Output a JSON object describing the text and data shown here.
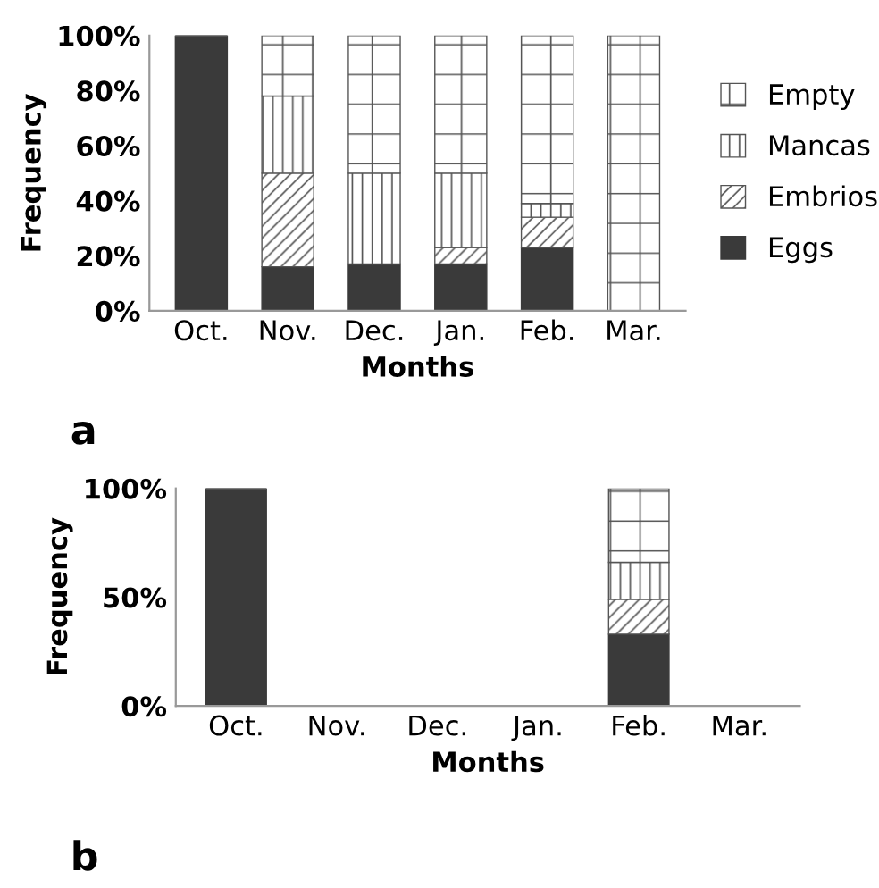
{
  "chart_data": [
    {
      "type": "bar",
      "stacked": true,
      "xlabel": "Months",
      "ylabel": "Frequency",
      "annotations": [
        "a"
      ],
      "categories": [
        "Oct.",
        "Nov.",
        "Dec.",
        "Jan.",
        "Feb.",
        "Mar."
      ],
      "series": [
        {
          "name": "Eggs",
          "color": "#3a3a3a",
          "values": [
            100,
            16,
            17,
            17,
            23,
            0
          ]
        },
        {
          "name": "Embrios",
          "color": "#555555",
          "values": [
            0,
            34,
            0,
            6,
            11,
            0
          ]
        },
        {
          "name": "Mancas",
          "color": "#555555",
          "values": [
            0,
            28,
            33,
            27,
            5,
            0
          ]
        },
        {
          "name": "Empty",
          "color": "#555555",
          "values": [
            0,
            22,
            50,
            50,
            61,
            100
          ]
        }
      ],
      "ylim": [
        0,
        100
      ],
      "yticks": [
        {
          "value": 0,
          "label": "0%"
        },
        {
          "value": 20,
          "label": "20%"
        },
        {
          "value": 40,
          "label": "40%"
        },
        {
          "value": 60,
          "label": "60%"
        },
        {
          "value": 80,
          "label": "80%"
        },
        {
          "value": 100,
          "label": "100%"
        }
      ],
      "legend": "right"
    },
    {
      "type": "bar",
      "stacked": true,
      "xlabel": "Months",
      "ylabel": "Frequency",
      "annotations": [
        "b"
      ],
      "categories": [
        "Oct.",
        "Nov.",
        "Dec.",
        "Jan.",
        "Feb.",
        "Mar."
      ],
      "series": [
        {
          "color": "#3a3a3a",
          "values": [
            100,
            null,
            null,
            null,
            33,
            null
          ]
        },
        {
          "color": "#555555",
          "values": [
            0,
            null,
            null,
            null,
            16,
            null
          ]
        },
        {
          "color": "#555555",
          "values": [
            0,
            null,
            null,
            null,
            17,
            null
          ]
        },
        {
          "color": "#555555",
          "values": [
            0,
            null,
            null,
            null,
            34,
            null
          ]
        }
      ],
      "ylim": [
        0,
        100
      ],
      "yticks": [
        {
          "value": 0,
          "label": "0%"
        },
        {
          "value": 50,
          "label": "50%"
        },
        {
          "value": 100,
          "label": "100%"
        }
      ]
    }
  ]
}
